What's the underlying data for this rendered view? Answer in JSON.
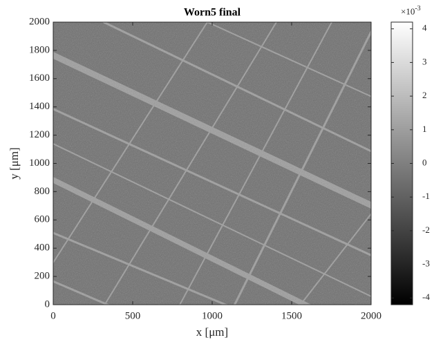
{
  "chart_data": {
    "type": "heatmap",
    "title": "Worn5 final",
    "x_label": "x [μm]",
    "y_label": "y [μm]",
    "xlim": [
      0,
      2000
    ],
    "ylim": [
      0,
      2000
    ],
    "xticks": [
      0,
      500,
      1000,
      1500,
      2000
    ],
    "yticks": [
      0,
      200,
      400,
      600,
      800,
      1000,
      1200,
      1400,
      1600,
      1800,
      2000
    ],
    "colormap": "gray",
    "clim": [
      -4.2,
      4.2
    ],
    "cticks": [
      -4,
      -3,
      -2,
      -1,
      0,
      1,
      2,
      3,
      4
    ],
    "colorbar_multiplier": {
      "base": "×10",
      "exponent": "-3"
    }
  }
}
